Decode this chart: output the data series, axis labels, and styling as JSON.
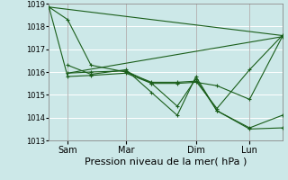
{
  "xlabel": "Pression niveau de la mer( hPa )",
  "background_color": "#cce8e8",
  "grid_color": "#ffffff",
  "line_color": "#1a5e1a",
  "ylim": [
    1013.0,
    1019.0
  ],
  "yticks": [
    1013,
    1014,
    1015,
    1016,
    1017,
    1018,
    1019
  ],
  "xtick_labels": [
    "Sam",
    "Mar",
    "Dim",
    "Lun"
  ],
  "xtick_positions": [
    0.08,
    0.33,
    0.63,
    0.86
  ],
  "x_vlines": [
    0.08,
    0.33,
    0.63,
    0.86
  ],
  "xlim": [
    0.0,
    1.0
  ],
  "trend1_x": [
    0.0,
    1.0
  ],
  "trend1_y": [
    1018.85,
    1017.6
  ],
  "trend2_x": [
    0.08,
    1.0
  ],
  "trend2_y": [
    1015.95,
    1017.55
  ],
  "line1_x": [
    0.0,
    0.08,
    0.18,
    0.33,
    0.44,
    0.55,
    0.63,
    0.72,
    0.86,
    1.0
  ],
  "line1_y": [
    1018.85,
    1018.3,
    1016.3,
    1016.0,
    1015.55,
    1015.55,
    1015.6,
    1014.4,
    1016.1,
    1017.6
  ],
  "line2_x": [
    0.0,
    0.08,
    0.18,
    0.33,
    0.44,
    0.55,
    0.63,
    0.72,
    0.86,
    1.0
  ],
  "line2_y": [
    1018.85,
    1015.8,
    1015.85,
    1015.95,
    1015.5,
    1015.5,
    1015.55,
    1015.4,
    1014.8,
    1017.55
  ],
  "line3_x": [
    0.08,
    0.18,
    0.33,
    0.44,
    0.55,
    0.63,
    0.72,
    0.86,
    1.0
  ],
  "line3_y": [
    1016.3,
    1015.9,
    1016.1,
    1015.1,
    1014.1,
    1015.8,
    1014.3,
    1013.5,
    1013.55
  ],
  "line4_x": [
    0.08,
    0.18,
    0.33,
    0.44,
    0.55,
    0.63,
    0.72,
    0.86,
    1.0
  ],
  "line4_y": [
    1015.95,
    1016.0,
    1016.05,
    1015.5,
    1014.5,
    1015.7,
    1014.3,
    1013.55,
    1014.1
  ],
  "fontsize_xlabel": 8,
  "fontsize_ytick": 6,
  "fontsize_xtick": 7,
  "marker_size": 2.5,
  "linewidth": 0.8
}
